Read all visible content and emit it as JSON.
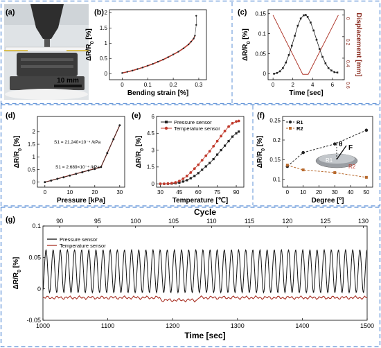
{
  "chart_data": [
    {
      "panel": "(a)",
      "type": "photo",
      "scalebar": "10 mm"
    },
    {
      "panel": "(b)",
      "type": "scatter",
      "xlabel": "Bending strain [%]",
      "ylabel": "ΔR/R0 [%]",
      "xlim": [
        -0.05,
        0.33
      ],
      "ylim": [
        -0.2,
        2.1
      ],
      "xticks": [
        "0",
        "0.1",
        "0.2",
        "0.3"
      ],
      "yticks": [
        "0",
        "0.5",
        "1",
        "1.5",
        "2"
      ],
      "series": [
        {
          "color": "#222222",
          "x": [
            0,
            0.02,
            0.04,
            0.06,
            0.08,
            0.1,
            0.12,
            0.14,
            0.16,
            0.18,
            0.2,
            0.22,
            0.24,
            0.26,
            0.27,
            0.28,
            0.285,
            0.29,
            0.29
          ],
          "y": [
            0.02,
            0.06,
            0.1,
            0.15,
            0.2,
            0.26,
            0.32,
            0.39,
            0.46,
            0.54,
            0.63,
            0.72,
            0.83,
            0.96,
            1.05,
            1.15,
            1.25,
            1.6,
            1.9
          ]
        }
      ],
      "fit_color": "#b03a2e"
    },
    {
      "panel": "(c)",
      "type": "line",
      "xlabel": "Time [sec]",
      "ylabel": "ΔR/R0 [%]",
      "y2label": "Displacement [mm]",
      "xlim": [
        -0.5,
        7.2
      ],
      "ylim": [
        -0.015,
        0.16
      ],
      "y2lim": [
        0.6,
        -0.05
      ],
      "xticks": [
        "0",
        "2",
        "4",
        "6"
      ],
      "yticks": [
        "0",
        "0.05",
        "0.1",
        "0.15"
      ],
      "y2ticks": [
        "0",
        "0.2",
        "0.4",
        "0.6"
      ],
      "series": [
        {
          "color": "#222222",
          "x": [
            0.1,
            0.4,
            0.7,
            1.0,
            1.3,
            1.6,
            1.9,
            2.2,
            2.5,
            2.8,
            3.1,
            3.3,
            3.5,
            3.8,
            4.1,
            4.4,
            4.7,
            5.0,
            5.3,
            5.6,
            5.9,
            6.2,
            6.5
          ],
          "y": [
            0.0,
            0.002,
            0.006,
            0.014,
            0.028,
            0.047,
            0.07,
            0.095,
            0.12,
            0.138,
            0.146,
            0.147,
            0.142,
            0.128,
            0.108,
            0.085,
            0.062,
            0.042,
            0.026,
            0.014,
            0.008,
            0.004,
            0.003
          ]
        },
        {
          "color": "#b03a2e",
          "axis": "y2",
          "x": [
            0,
            3.0,
            3.55,
            6.6
          ],
          "y": [
            0.0,
            0.55,
            0.55,
            0.0
          ]
        }
      ]
    },
    {
      "panel": "(d)",
      "type": "scatter",
      "xlabel": "Pressure [kPa]",
      "ylabel": "ΔR/R0 [%]",
      "xlim": [
        -3,
        32
      ],
      "ylim": [
        -0.2,
        2.6
      ],
      "xticks": [
        "0",
        "10",
        "20",
        "30"
      ],
      "yticks": [
        "0",
        "0.5",
        "1",
        "1.5",
        "2"
      ],
      "annotations": [
        "S1 = 21.240×10⁻⁴ /kPa",
        "S1 = 2.689×10⁻⁴ /kPa"
      ],
      "series": [
        {
          "color": "#222222",
          "x": [
            0,
            2.5,
            5,
            7.5,
            10,
            12.5,
            15,
            17.5,
            20,
            22.5,
            25,
            27.5,
            30
          ],
          "y": [
            0.0,
            0.06,
            0.13,
            0.19,
            0.26,
            0.33,
            0.39,
            0.46,
            0.52,
            0.6,
            1.15,
            1.7,
            2.25
          ]
        }
      ],
      "fit_color": "#b03a2e"
    },
    {
      "panel": "(e)",
      "type": "line",
      "xlabel": "Temperature [℃]",
      "ylabel": "ΔR/R0 [%]",
      "xlim": [
        27,
        96
      ],
      "ylim": [
        -0.3,
        6
      ],
      "xticks": [
        "30",
        "45",
        "60",
        "75",
        "90"
      ],
      "yticks": [
        "0",
        "1.5",
        "3",
        "4.5",
        "6"
      ],
      "series": [
        {
          "name": "Pressure sensor",
          "color": "#222222",
          "x": [
            30,
            33,
            36,
            39,
            42,
            45,
            48,
            51,
            54,
            57,
            60,
            63,
            66,
            69,
            72,
            75,
            78,
            81,
            84,
            87,
            90,
            92
          ],
          "y": [
            0.0,
            0.0,
            0.0,
            0.02,
            0.05,
            0.1,
            0.2,
            0.32,
            0.5,
            0.7,
            0.95,
            1.25,
            1.55,
            1.85,
            2.2,
            2.6,
            3.0,
            3.4,
            3.8,
            4.2,
            4.5,
            4.65
          ]
        },
        {
          "name": "Temperature sensor",
          "color": "#c0392b",
          "x": [
            30,
            33,
            36,
            39,
            42,
            45,
            48,
            51,
            54,
            57,
            60,
            63,
            66,
            69,
            72,
            75,
            78,
            81,
            84,
            87,
            90,
            92
          ],
          "y": [
            0.0,
            0.0,
            0.02,
            0.05,
            0.12,
            0.25,
            0.45,
            0.7,
            1.0,
            1.35,
            1.7,
            2.1,
            2.5,
            2.9,
            3.35,
            3.8,
            4.25,
            4.7,
            5.1,
            5.4,
            5.55,
            5.6
          ]
        }
      ]
    },
    {
      "panel": "(f)",
      "type": "scatter",
      "xlabel": "Degree [º]",
      "ylabel": "ΔR/R0 [%]",
      "xlim": [
        -3,
        54
      ],
      "ylim": [
        0.08,
        0.26
      ],
      "xticks": [
        "0",
        "10",
        "20",
        "30",
        "40",
        "50"
      ],
      "yticks": [
        "0.1",
        "0.15",
        "0.2",
        "0.25"
      ],
      "series": [
        {
          "name": "R1",
          "color": "#222222",
          "x": [
            0,
            10,
            30,
            50
          ],
          "y": [
            0.133,
            0.168,
            0.19,
            0.225
          ]
        },
        {
          "name": "R2",
          "color": "#b86a2e",
          "x": [
            0,
            10,
            30,
            50
          ],
          "y": [
            0.136,
            0.124,
            0.117,
            0.105
          ]
        }
      ],
      "inset_labels": [
        "θ",
        "F",
        "R1",
        "R2"
      ]
    },
    {
      "panel": "(g)",
      "type": "line",
      "xlabel": "Time [sec]",
      "ylabel": "ΔR/R0 [%]",
      "x2label": "Cycle",
      "xlim": [
        1000,
        1500
      ],
      "ylim": [
        -0.05,
        0.1
      ],
      "xticks": [
        "1000",
        "1100",
        "1200",
        "1300",
        "1400",
        "1500"
      ],
      "x2ticks": [
        "90",
        "95",
        "100",
        "105",
        "110",
        "115",
        "120",
        "125",
        "130"
      ],
      "yticks": [
        "-0.05",
        "0",
        "0.05",
        "0.1"
      ],
      "series": [
        {
          "name": "Pressure sensor",
          "color": "#111111",
          "period_sec": 11.0,
          "peak": 0.062,
          "trough": -0.006
        },
        {
          "name": "Temperature sensor",
          "color": "#a93226",
          "baseline": -0.014
        }
      ]
    }
  ]
}
